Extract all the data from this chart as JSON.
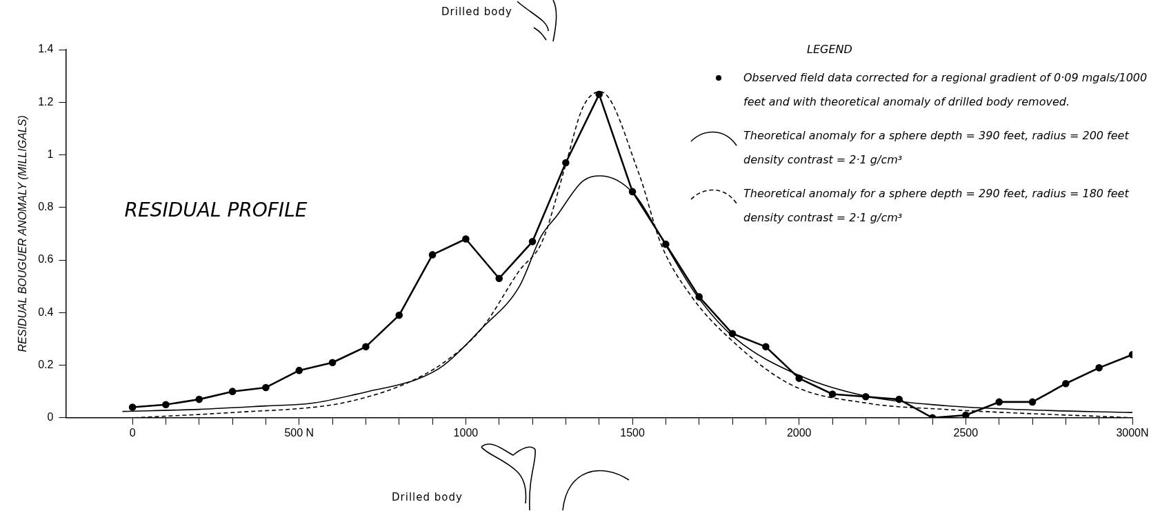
{
  "chart_data": {
    "type": "line",
    "title": "RESIDUAL PROFILE",
    "ylabel": "RESIDUAL BOUGUER ANOMALY (MILLIGALS)",
    "legend_title": "LEGEND",
    "legend": "top right",
    "annotations": [
      "Drilled body",
      "Drilled body"
    ],
    "xlim": [
      -200,
      3000
    ],
    "ylim": [
      0,
      1.4
    ],
    "xticks": [
      {
        "value": 0,
        "label": "0"
      },
      {
        "value": 100,
        "label": null
      },
      {
        "value": 200,
        "label": null
      },
      {
        "value": 300,
        "label": null
      },
      {
        "value": 400,
        "label": null
      },
      {
        "value": 500,
        "label": "500 N"
      },
      {
        "value": 600,
        "label": null
      },
      {
        "value": 700,
        "label": null
      },
      {
        "value": 800,
        "label": null
      },
      {
        "value": 900,
        "label": null
      },
      {
        "value": 1000,
        "label": "1000"
      },
      {
        "value": 1100,
        "label": null
      },
      {
        "value": 1200,
        "label": null
      },
      {
        "value": 1300,
        "label": null
      },
      {
        "value": 1400,
        "label": null
      },
      {
        "value": 1500,
        "label": "1500"
      },
      {
        "value": 1600,
        "label": null
      },
      {
        "value": 1700,
        "label": null
      },
      {
        "value": 1800,
        "label": null
      },
      {
        "value": 1900,
        "label": null
      },
      {
        "value": 2000,
        "label": "2000"
      },
      {
        "value": 2100,
        "label": null
      },
      {
        "value": 2200,
        "label": null
      },
      {
        "value": 2300,
        "label": null
      },
      {
        "value": 2400,
        "label": null
      },
      {
        "value": 2500,
        "label": "2500"
      },
      {
        "value": 2600,
        "label": null
      },
      {
        "value": 2700,
        "label": null
      },
      {
        "value": 2800,
        "label": null
      },
      {
        "value": 2900,
        "label": null
      },
      {
        "value": 3000,
        "label": "3000N"
      }
    ],
    "yticks": [
      0,
      0.2,
      0.4,
      0.6,
      0.8,
      1.0,
      1.2,
      1.4
    ],
    "series": [
      {
        "name": "Observed field data corrected for a regional gradient of 0·09 mgals/1000 feet and with theoretical anomaly of drilled body removed.",
        "type": "line",
        "color": "#000000",
        "marker": "circle",
        "line_style": "solid",
        "x": [
          0,
          100,
          200,
          300,
          400,
          500,
          600,
          700,
          800,
          900,
          1000,
          1100,
          1200,
          1300,
          1400,
          1500,
          1600,
          1700,
          1800,
          1900,
          2000,
          2100,
          2200,
          2300,
          2400,
          2500,
          2600,
          2700,
          2800,
          2900,
          3000
        ],
        "values": [
          0.04,
          0.05,
          0.07,
          0.1,
          0.115,
          0.18,
          0.21,
          0.27,
          0.39,
          0.62,
          0.68,
          0.53,
          0.67,
          0.97,
          1.23,
          0.86,
          0.66,
          0.46,
          0.32,
          0.27,
          0.15,
          0.09,
          0.08,
          0.07,
          0.0,
          0.01,
          0.06,
          0.06,
          0.13,
          0.19,
          0.24
        ]
      },
      {
        "name": "Theoretical anomaly for a sphere depth = 390 feet, radius = 200 feet density contrast = 2·1 g/cm³",
        "type": "line",
        "color": "#000000",
        "marker": "none",
        "line_style": "solid",
        "x": [
          -30,
          200,
          400,
          537,
          707,
          855,
          934,
          1048,
          1161,
          1226,
          1274,
          1351,
          1404,
          1506,
          1598,
          1690,
          1801,
          2002,
          2209,
          2439,
          2669,
          3000
        ],
        "values": [
          0.024,
          0.032,
          0.045,
          0.055,
          0.1,
          0.147,
          0.2,
          0.34,
          0.5,
          0.69,
          0.77,
          0.9,
          0.92,
          0.85,
          0.66,
          0.47,
          0.31,
          0.16,
          0.08,
          0.046,
          0.031,
          0.02
        ]
      },
      {
        "name": "Theoretical anomaly for a sphere depth = 290 feet, radius = 180 feet density contrast = 2·1 g/cm³",
        "type": "line",
        "color": "#000000",
        "marker": "none",
        "line_style": "dashed",
        "x": [
          5,
          300,
          593,
          707,
          820,
          934,
          1048,
          1161,
          1229,
          1297,
          1351,
          1404,
          1519,
          1586,
          1678,
          1793,
          1977,
          2207,
          2437,
          3000
        ],
        "values": [
          0.0,
          0.02,
          0.048,
          0.08,
          0.13,
          0.21,
          0.34,
          0.56,
          0.67,
          0.95,
          1.18,
          1.24,
          0.93,
          0.66,
          0.46,
          0.3,
          0.125,
          0.055,
          0.032,
          0.0
        ]
      }
    ]
  }
}
